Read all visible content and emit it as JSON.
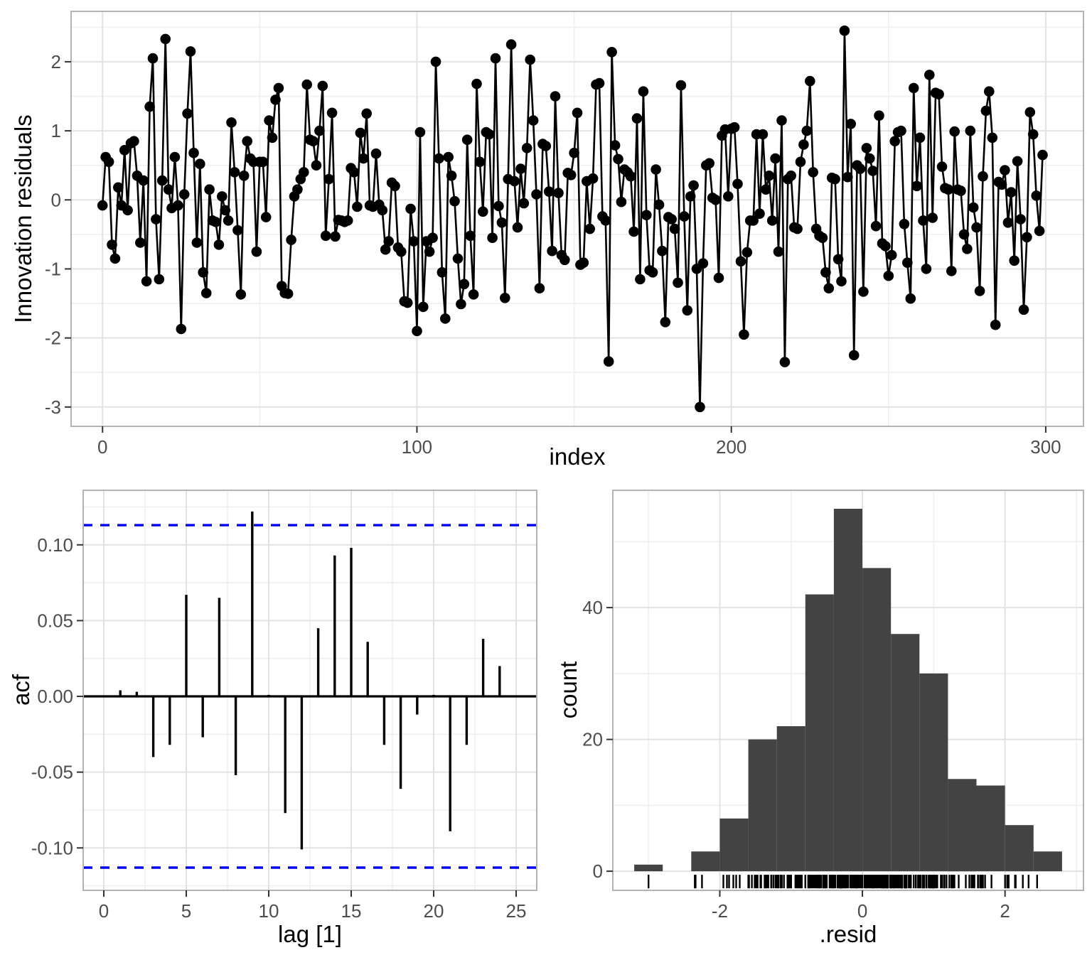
{
  "figure": {
    "description": "Residual diagnostics figure with time plot, ACF plot and histogram",
    "background": "#ffffff",
    "grid_major_color": "#e2e2e2",
    "grid_minor_color": "#efefef",
    "panel_border_color": "#b3b3b3",
    "tick_color": "#333333",
    "tick_label_color": "#4d4d4d"
  },
  "chart_data": [
    {
      "type": "line",
      "name": "innovation-residuals-time-plot",
      "title": "",
      "xlabel": "index",
      "ylabel": "Innovation residuals",
      "x_start": 0,
      "x_step": 1,
      "values": [
        -0.08,
        0.62,
        0.55,
        -0.65,
        -0.85,
        0.18,
        -0.08,
        0.72,
        -0.15,
        0.82,
        0.85,
        0.35,
        -0.62,
        0.28,
        -1.18,
        1.35,
        2.05,
        -0.28,
        -1.15,
        0.28,
        2.33,
        0.15,
        -0.12,
        0.62,
        -0.08,
        -1.87,
        0.08,
        1.25,
        2.15,
        0.68,
        -0.62,
        0.52,
        -1.05,
        -1.35,
        0.15,
        -0.3,
        -0.32,
        -0.65,
        0.05,
        -0.15,
        -0.3,
        1.12,
        0.4,
        -0.44,
        -1.37,
        0.35,
        0.85,
        0.6,
        0.55,
        -0.75,
        0.55,
        0.55,
        -0.25,
        1.15,
        0.9,
        1.45,
        1.62,
        -1.25,
        -1.35,
        -1.36,
        -0.58,
        0.05,
        0.15,
        0.3,
        0.4,
        1.67,
        0.87,
        0.85,
        0.5,
        1.0,
        1.65,
        -0.52,
        0.3,
        1.26,
        -0.53,
        -0.29,
        -0.3,
        -0.32,
        -0.3,
        0.46,
        0.4,
        -0.1,
        0.97,
        0.6,
        1.25,
        -0.08,
        -0.1,
        0.67,
        -0.07,
        -0.15,
        -0.72,
        -0.6,
        0.25,
        0.2,
        -0.69,
        -0.75,
        -1.47,
        -1.49,
        -0.13,
        -0.6,
        -1.9,
        0.98,
        -1.55,
        -0.6,
        -0.75,
        -0.55,
        2.0,
        0.6,
        -1.05,
        -1.72,
        0.62,
        0.35,
        -0.02,
        -0.85,
        -1.51,
        -1.22,
        0.87,
        -0.52,
        -1.37,
        1.68,
        0.55,
        -0.17,
        0.98,
        0.95,
        -0.55,
        2.05,
        -0.09,
        -0.33,
        -1.42,
        0.3,
        2.25,
        0.27,
        -0.4,
        0.45,
        -0.05,
        0.75,
        2.03,
        1.15,
        0.08,
        -1.28,
        0.81,
        0.78,
        0.12,
        -0.74,
        1.5,
        0.1,
        -0.8,
        -0.87,
        0.39,
        0.36,
        0.68,
        1.26,
        -0.94,
        -0.91,
        0.27,
        -0.42,
        0.31,
        1.67,
        1.69,
        -0.24,
        -0.3,
        -2.34,
        2.14,
        0.79,
        0.59,
        -0.03,
        0.44,
        0.4,
        0.34,
        -0.46,
        1.18,
        -1.15,
        1.57,
        -0.22,
        -1.02,
        -1.05,
        0.44,
        -0.07,
        -0.74,
        -1.77,
        -0.25,
        -0.28,
        -0.42,
        -1.2,
        1.66,
        -0.24,
        -1.6,
        0.05,
        0.21,
        -1.0,
        -3.0,
        -0.92,
        0.5,
        0.53,
        0.03,
        0.0,
        -1.13,
        0.93,
        1.02,
        0.05,
        1.03,
        1.05,
        0.23,
        -0.89,
        -1.95,
        -0.76,
        -0.3,
        -0.3,
        0.95,
        -0.2,
        0.95,
        0.15,
        0.35,
        -0.3,
        0.6,
        -0.75,
        1.15,
        -2.35,
        0.3,
        0.35,
        -0.4,
        -0.42,
        0.55,
        0.8,
        1.0,
        1.72,
        0.4,
        -0.42,
        -0.52,
        -0.55,
        -1.05,
        -1.28,
        0.32,
        0.3,
        -0.86,
        -1.18,
        2.45,
        0.33,
        1.1,
        -2.25,
        0.5,
        0.45,
        -1.33,
        0.75,
        0.6,
        0.42,
        -0.38,
        1.22,
        -0.63,
        -0.67,
        -1.1,
        -0.8,
        0.85,
        0.98,
        1.0,
        -0.35,
        -0.91,
        -1.43,
        1.62,
        0.2,
        0.9,
        -0.3,
        -1.0,
        1.81,
        -0.26,
        1.55,
        1.53,
        0.48,
        0.17,
        0.15,
        -1.03,
        0.99,
        0.15,
        0.13,
        -0.5,
        -0.71,
        1.0,
        -0.11,
        -0.4,
        -1.32,
        0.34,
        1.29,
        1.57,
        0.9,
        -1.81,
        0.26,
        0.22,
        0.43,
        -0.33,
        0.11,
        -0.88,
        0.56,
        -0.28,
        -1.59,
        -0.54,
        1.27,
        0.95,
        0.06,
        -0.45,
        0.65
      ],
      "xlim": [
        -10,
        312
      ],
      "ylim": [
        -3.28,
        2.73
      ],
      "x_ticks": [
        0,
        100,
        200,
        300
      ],
      "x_tick_labels": [
        "0",
        "100",
        "200",
        "300"
      ],
      "x_minor": [
        50,
        150,
        250
      ],
      "y_ticks": [
        2,
        1,
        0,
        -1,
        -2,
        -3
      ],
      "y_tick_labels": [
        "2",
        "1",
        "0",
        "-1",
        "-2",
        "-3"
      ],
      "y_minor": [
        2.5,
        1.5,
        0.5,
        -0.5,
        -1.5,
        -2.5
      ],
      "line_color": "#000000",
      "point_color": "#000000"
    },
    {
      "type": "bar",
      "name": "acf-plot",
      "title": "",
      "xlabel": "lag [1]",
      "ylabel": "acf",
      "lags": [
        1,
        2,
        3,
        4,
        5,
        6,
        7,
        8,
        9,
        10,
        11,
        12,
        13,
        14,
        15,
        16,
        17,
        18,
        19,
        20,
        21,
        22,
        23,
        24
      ],
      "values": [
        0.004,
        0.003,
        -0.04,
        -0.032,
        0.067,
        -0.027,
        0.065,
        -0.052,
        0.122,
        0.001,
        -0.077,
        -0.101,
        0.045,
        0.093,
        0.098,
        0.036,
        -0.032,
        -0.061,
        -0.012,
        0.001,
        -0.089,
        -0.032,
        0.038,
        0.02
      ],
      "conf_bound": 0.113,
      "conf_color": "#0000FF",
      "bar_color": "#000000",
      "xlim": [
        -1.25,
        26.25
      ],
      "ylim": [
        -0.128,
        0.136
      ],
      "x_ticks": [
        0,
        5,
        10,
        15,
        20,
        25
      ],
      "x_tick_labels": [
        "0",
        "5",
        "10",
        "15",
        "20",
        "25"
      ],
      "x_minor": [
        2.5,
        7.5,
        12.5,
        17.5,
        22.5
      ],
      "y_ticks": [
        0.1,
        0.05,
        0.0,
        -0.05,
        -0.1
      ],
      "y_tick_labels": [
        "0.10",
        "0.05",
        "0.00",
        "-0.05",
        "-0.10"
      ],
      "y_minor": [
        0.125,
        0.075,
        0.025,
        -0.025,
        -0.075,
        -0.125
      ]
    },
    {
      "type": "histogram",
      "name": "residual-histogram",
      "title": "",
      "xlabel": ".resid",
      "ylabel": "count",
      "bin_start": -3.2,
      "bin_width": 0.4,
      "counts": [
        1,
        0,
        3,
        8,
        20,
        22,
        42,
        55,
        46,
        36,
        30,
        14,
        13,
        7,
        3
      ],
      "rug": true,
      "bar_color": "#434343",
      "xlim": [
        -3.5,
        3.1
      ],
      "ylim": [
        -2.9,
        57.8
      ],
      "x_ticks": [
        -2,
        0,
        2
      ],
      "x_tick_labels": [
        "-2",
        "0",
        "2"
      ],
      "x_minor": [
        -3,
        -1,
        1,
        3
      ],
      "y_ticks": [
        0,
        20,
        40
      ],
      "y_tick_labels": [
        "0",
        "20",
        "40"
      ],
      "y_minor": [
        10,
        30,
        50
      ]
    }
  ]
}
